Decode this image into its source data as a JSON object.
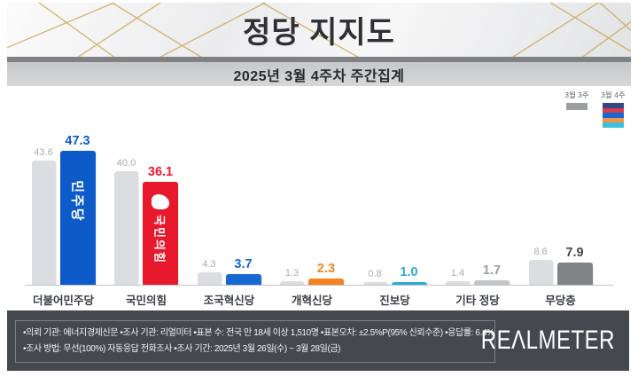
{
  "header": {
    "title": "정당 지지도",
    "subtitle": "2025년 3월 4주차 주간집계"
  },
  "legend": {
    "prev_label": "3월 3주",
    "curr_label": "3월 4주",
    "prev_color": "#9b9ea3",
    "curr_colors": [
      "#33497e",
      "#d43a50",
      "#1668d2",
      "#f0944a",
      "#3fc0dc"
    ]
  },
  "chart_data": {
    "type": "bar",
    "title": "정당 지지도 — 2025년 3월 4주차 주간집계",
    "categories": [
      "더불어민주당",
      "국민의힘",
      "조국혁신당",
      "개혁신당",
      "진보당",
      "기타 정당",
      "무당층"
    ],
    "series": [
      {
        "name": "3월 3주",
        "values": [
          43.6,
          40.0,
          4.3,
          1.3,
          0.8,
          1.4,
          8.6
        ],
        "color": "#dcdde0"
      },
      {
        "name": "3월 4주",
        "values": [
          47.3,
          36.1,
          3.7,
          2.3,
          1.0,
          1.7,
          7.9
        ],
        "colors": [
          "#0d5bc8",
          "#e8192c",
          "#1668d2",
          "#f5821f",
          "#29abd4",
          "#c3c6c9",
          "#808487"
        ]
      }
    ],
    "value_labels_prev": [
      "43.6",
      "40.0",
      "4.3",
      "1.3",
      "0.8",
      "1.4",
      "8.6"
    ],
    "value_labels_curr": [
      "47.3",
      "36.1",
      "3.7",
      "2.3",
      "1.0",
      "1.7",
      "7.9"
    ],
    "curr_label_colors": [
      "#0d5bc8",
      "#e8192c",
      "#1668d2",
      "#f5821f",
      "#29abd4",
      "#9a9ea2",
      "#44484c"
    ],
    "prev_label_color": "#a8acb0",
    "bar_logos": [
      {
        "index": 0,
        "text": "민주당",
        "symbol": false
      },
      {
        "index": 1,
        "text": "국민의힘",
        "symbol": true
      }
    ],
    "ylim": [
      0,
      52
    ],
    "grid": false,
    "legend_position": "top-right"
  },
  "footer": {
    "line1": "•의뢰 기관: 에너지경제신문  •조사 기관: 리얼미터 •표본 수: 전국 만 18세 이상 1,510명 •표본오차: ±2.5%P(95% 신뢰수준) •응답률: 6.4%",
    "line2": "•조사 방법: 무선(100%) 자동응답 전화조사 •조사 기간: 2025년 3월 26일(수) ~ 3월 28일(금)",
    "logo": "REΛLMETER"
  }
}
